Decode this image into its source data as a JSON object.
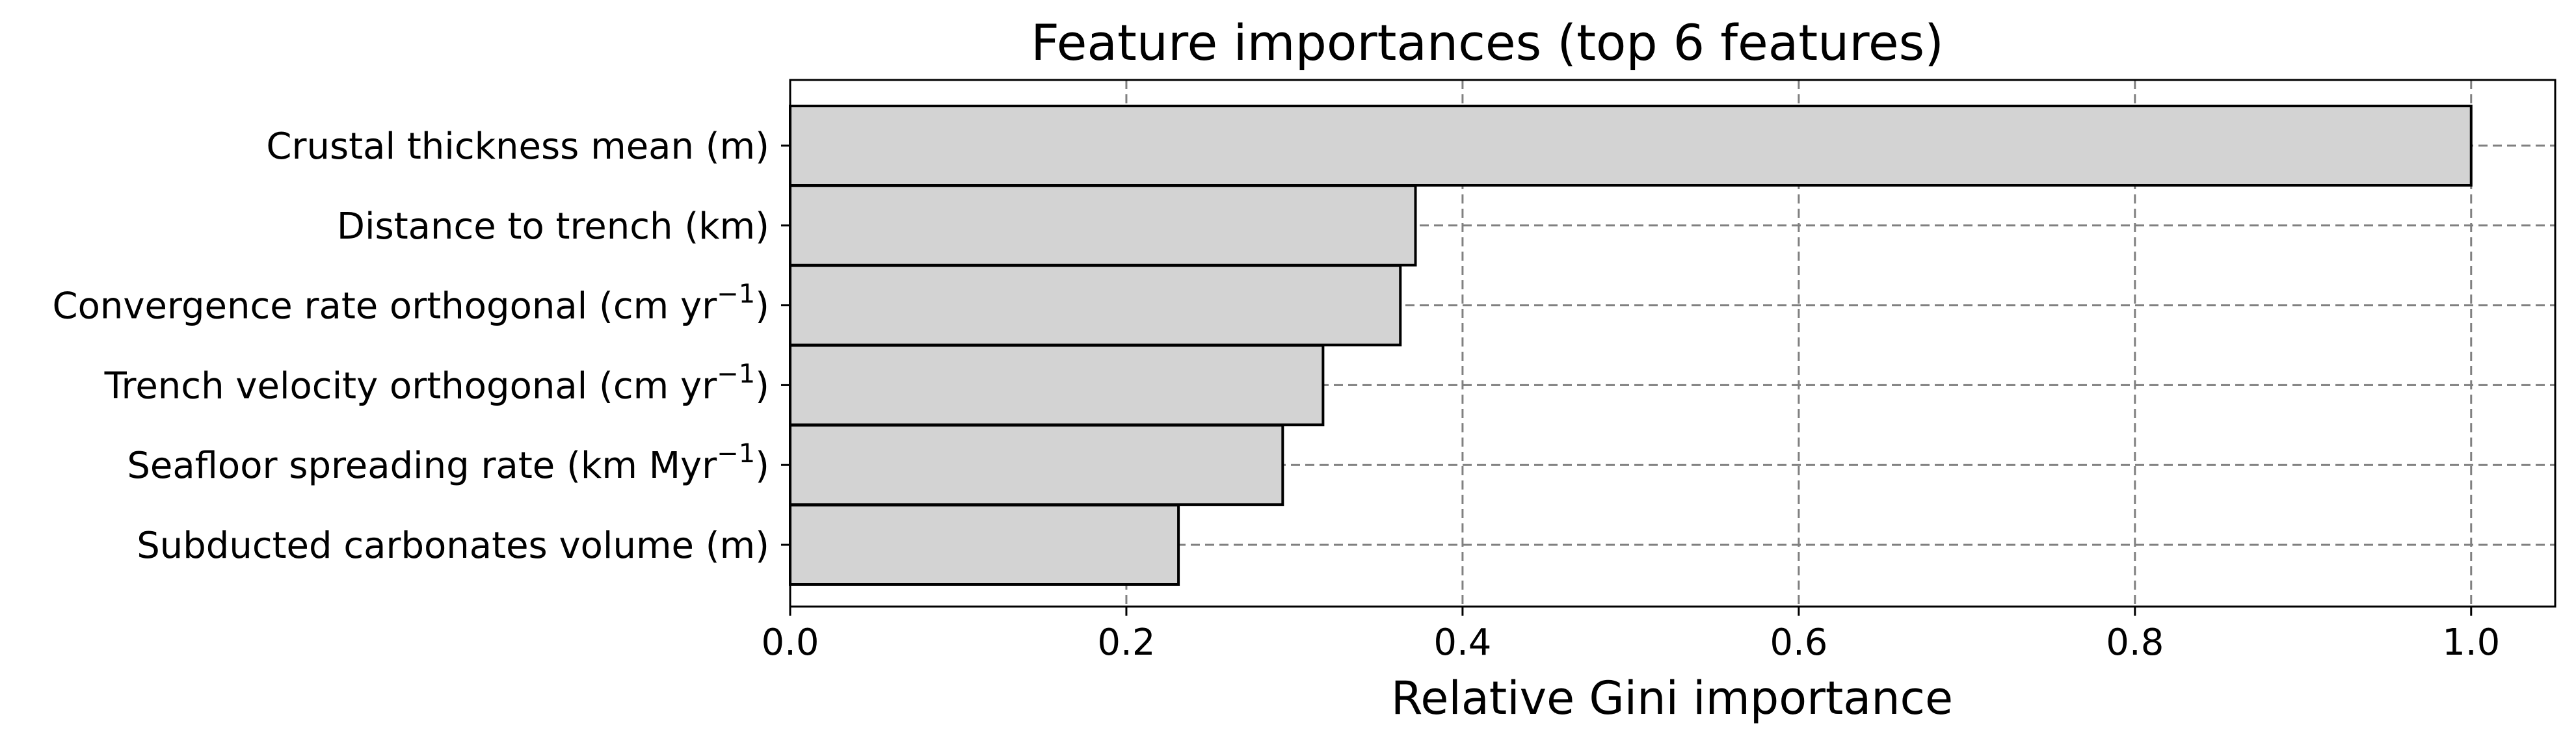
{
  "chart_data": {
    "type": "bar",
    "orientation": "horizontal",
    "title": "Feature importances (top 6 features)",
    "xlabel": "Relative Gini importance",
    "ylabel": "",
    "xlim": [
      0.0,
      1.05
    ],
    "xticks": [
      0.0,
      0.2,
      0.4,
      0.6,
      0.8,
      1.0
    ],
    "xtick_labels": [
      "0.0",
      "0.2",
      "0.4",
      "0.6",
      "0.8",
      "1.0"
    ],
    "grid": true,
    "categories": [
      {
        "text": "Crustal thickness mean (m)",
        "sup": "",
        "after": ""
      },
      {
        "text": "Distance to trench (km)",
        "sup": "",
        "after": ""
      },
      {
        "text": "Convergence rate orthogonal (cm yr",
        "sup": "−1",
        "after": ")"
      },
      {
        "text": "Trench velocity orthogonal (cm yr",
        "sup": "−1",
        "after": ")"
      },
      {
        "text": "Seafloor spreading rate (km Myr",
        "sup": "−1",
        "after": ")"
      },
      {
        "text": "Subducted carbonates volume (m)",
        "sup": "",
        "after": ""
      }
    ],
    "values": [
      1.0,
      0.372,
      0.363,
      0.317,
      0.293,
      0.231
    ],
    "colors": {
      "bar_fill": "#d3d3d3",
      "bar_edge": "#000000",
      "grid": "#808080"
    }
  }
}
